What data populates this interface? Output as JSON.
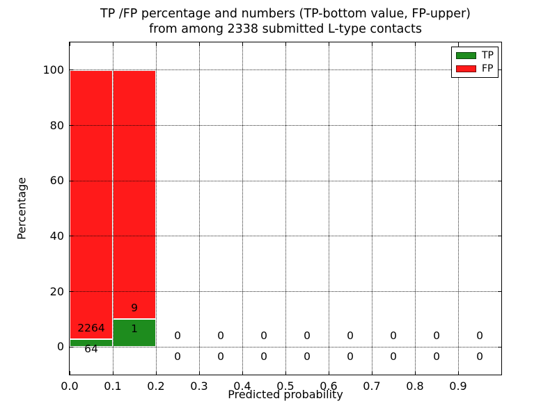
{
  "chart_data": {
    "type": "bar",
    "stacked": true,
    "title_line1": "TP /FP percentage and numbers (TP-bottom value, FP-upper)",
    "title_line2": "from among 2338 submitted L-type contacts",
    "xlabel": "Predicted probability",
    "ylabel": "Percentage",
    "xlim": [
      0,
      1.0
    ],
    "ylim": [
      -10,
      110
    ],
    "xtick_labels": [
      "0.0",
      "0.1",
      "0.2",
      "0.3",
      "0.4",
      "0.5",
      "0.6",
      "0.7",
      "0.8",
      "0.9"
    ],
    "ytick_labels": [
      "0",
      "20",
      "40",
      "60",
      "80",
      "100"
    ],
    "grid": true,
    "grid_style": "dotted",
    "colors": {
      "tp": "#1e8c1e",
      "fp": "#ff1a1a",
      "bar_edge": "#ffffff",
      "grid": "#000000"
    },
    "legend": {
      "position": "upper right",
      "entries": [
        {
          "label": "TP",
          "color": "#1e8c1e"
        },
        {
          "label": "FP",
          "color": "#ff1a1a"
        }
      ]
    },
    "bins": [
      {
        "x_start": 0.0,
        "x_end": 0.1,
        "tp_count": "64",
        "fp_count": "2264",
        "tp_pct": 2.75,
        "fp_pct": 97.25
      },
      {
        "x_start": 0.1,
        "x_end": 0.2,
        "tp_count": "1",
        "fp_count": "9",
        "tp_pct": 10,
        "fp_pct": 90
      },
      {
        "x_start": 0.2,
        "x_end": 0.3,
        "tp_count": "0",
        "fp_count": "0",
        "tp_pct": 0,
        "fp_pct": 0
      },
      {
        "x_start": 0.3,
        "x_end": 0.4,
        "tp_count": "0",
        "fp_count": "0",
        "tp_pct": 0,
        "fp_pct": 0
      },
      {
        "x_start": 0.4,
        "x_end": 0.5,
        "tp_count": "0",
        "fp_count": "0",
        "tp_pct": 0,
        "fp_pct": 0
      },
      {
        "x_start": 0.5,
        "x_end": 0.6,
        "tp_count": "0",
        "fp_count": "0",
        "tp_pct": 0,
        "fp_pct": 0
      },
      {
        "x_start": 0.6,
        "x_end": 0.7,
        "tp_count": "0",
        "fp_count": "0",
        "tp_pct": 0,
        "fp_pct": 0
      },
      {
        "x_start": 0.7,
        "x_end": 0.8,
        "tp_count": "0",
        "fp_count": "0",
        "tp_pct": 0,
        "fp_pct": 0
      },
      {
        "x_start": 0.8,
        "x_end": 0.9,
        "tp_count": "0",
        "fp_count": "0",
        "tp_pct": 0,
        "fp_pct": 0
      },
      {
        "x_start": 0.9,
        "x_end": 1.0,
        "tp_count": "0",
        "fp_count": "0",
        "tp_pct": 0,
        "fp_pct": 0
      }
    ]
  }
}
